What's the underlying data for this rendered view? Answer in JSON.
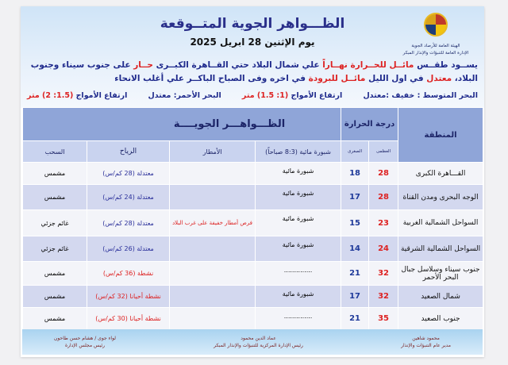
{
  "header": {
    "org_line1": "الهيئة العامة للأرصاد الجوية",
    "org_line2": "الإدارة العامة للتنبؤات والإنذار المبكر",
    "title": "الظـــواهر الجوية المتــوقعة",
    "date": "يوم الإثنين 28 ابريل 2025",
    "para_a": "يســود طقــس ",
    "para_b": "مائــل للحــرارة نهــاراً",
    "para_c": " علي شمال البلاد حتي القــاهرة الكبــرى ",
    "para_d": "حــار",
    "para_e": " على جنوب سيناء وجنوب البلاد، ",
    "para_f": "معتدل",
    "para_g": " في اول الليل ",
    "para_h": "مائــل للبرودة",
    "para_i": " في اخره وفى الصباح الباكــر علي أغلب الانحاء",
    "med_sea": "البحر المتوسط : خفيف :معتدل",
    "med_waves_label": "ارتفاع الأمواج ",
    "med_waves": "(1: 1.5) متر",
    "red_sea": "البحر الأحمر: معتدل",
    "red_waves_label": "ارتفاع الأمواج ",
    "red_waves": "(1.5: 2) متر"
  },
  "table": {
    "region_header": "المنطقة",
    "temp_header": "درجة الحرارة",
    "phenomena_header": "الظـــواهـــر الجويــــة",
    "max_header": "العظمى",
    "min_header": "الصغرى",
    "fog_header": "شبورة مائية (8:3 صباحاً)",
    "rain_header": "الأمطار",
    "wind_header": "الرياح",
    "cloud_header": "السحب",
    "rows": [
      {
        "region": "القـــاهرة الكبرى",
        "max": "28",
        "min": "18",
        "fog": "شبورة مائية",
        "rain": "",
        "wind": "معتدلة (28 كم/س)",
        "wind_style": "blue",
        "clouds": "مشمس"
      },
      {
        "region": "الوجه البحرى ومدن القناة",
        "max": "28",
        "min": "17",
        "fog": "شبورة مائية",
        "rain": "",
        "wind": "معتدلة (24 كم/س)",
        "wind_style": "blue",
        "clouds": "مشمس"
      },
      {
        "region": "السواحل الشمالية الغربية",
        "max": "23",
        "min": "15",
        "fog": "شبورة مائية",
        "rain": "فرص أمطار خفيفة على غرب البلاد",
        "wind": "معتدلة (28 كم/س)",
        "wind_style": "blue",
        "clouds": "غائم جزئي"
      },
      {
        "region": "السواحل الشمالية الشرقية",
        "max": "24",
        "min": "14",
        "fog": "شبورة مائية",
        "rain": "",
        "wind": "معتدلة (26 كم/س)",
        "wind_style": "blue",
        "clouds": "غائم جزئي"
      },
      {
        "region": "جنوب سيناء وسلاسل جبال البحر الأحمر",
        "max": "32",
        "min": "21",
        "fog": "..............",
        "rain": "",
        "wind": "نشطة (36 كم/س)",
        "wind_style": "red",
        "clouds": "مشمس"
      },
      {
        "region": "شمال الصعيد",
        "max": "32",
        "min": "17",
        "fog": "شبورة مائية",
        "rain": "",
        "wind": "نشطة أحيانا (32 كم/س)",
        "wind_style": "red",
        "clouds": "مشمس"
      },
      {
        "region": "جنوب الصعيد",
        "max": "35",
        "min": "21",
        "fog": "..............",
        "rain": "",
        "wind": "نشطة أحيانا (30 كم/س)",
        "wind_style": "red",
        "clouds": "مشمس"
      }
    ]
  },
  "footer": {
    "sig1_name": "محمود شاهين",
    "sig1_title": "مدير عام التنبؤات والإنذار",
    "sig2_name": "عماد الدين محمود",
    "sig2_title": "رئيس الإدارة المركزية للتنبؤات والإنذار المبكر",
    "sig3_name": "لواء جوى / هشام حسن طاحون",
    "sig3_title": "رئيس مجلس الإدارة"
  },
  "colors": {
    "header_blue": "#8fa5d8",
    "accent_red": "#d22222",
    "title_blue": "#2a2f8a"
  }
}
